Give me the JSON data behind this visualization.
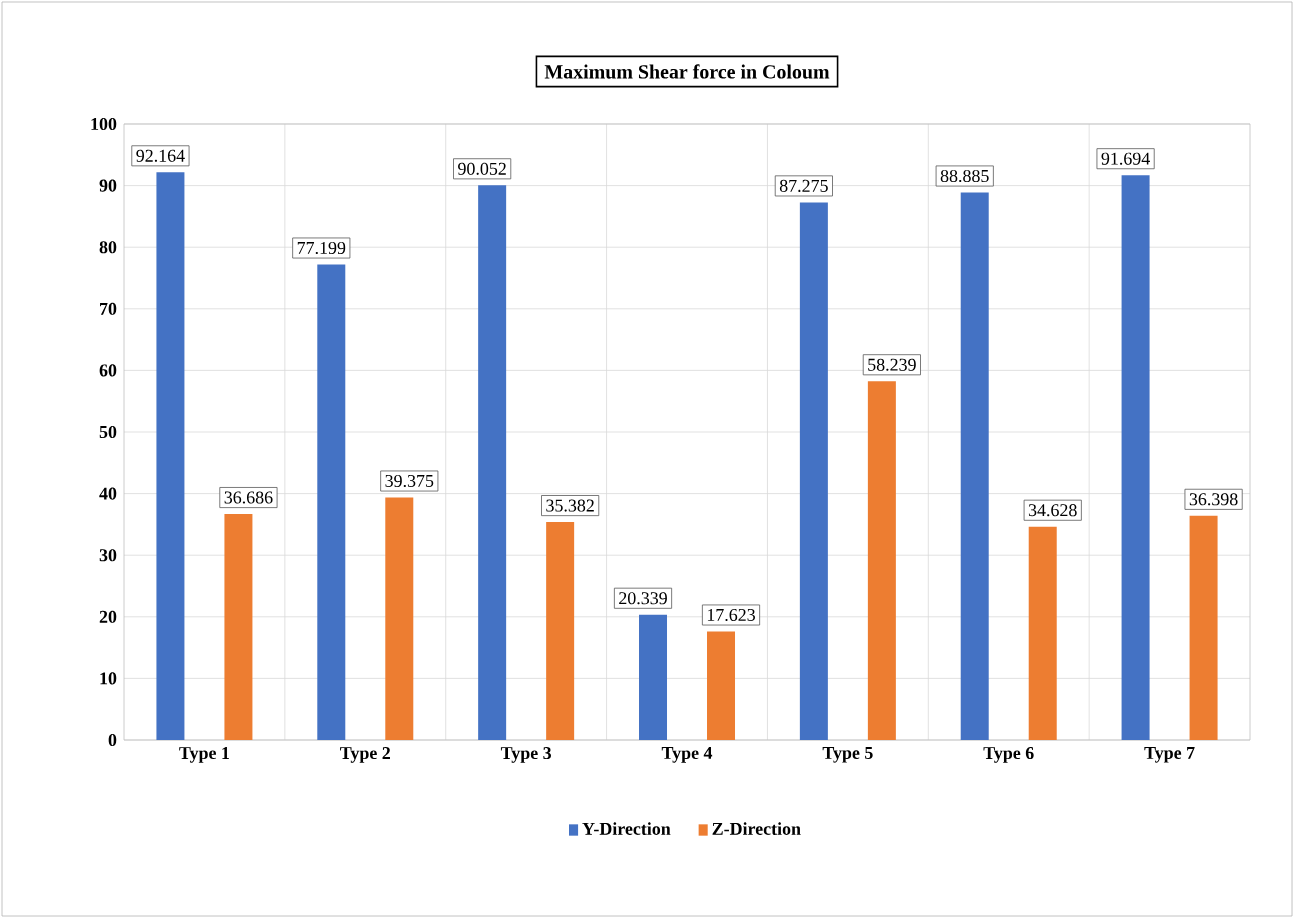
{
  "chart_data": {
    "type": "bar",
    "title": "Maximum  Shear force in Coloum",
    "categories": [
      "Type 1",
      "Type 2",
      "Type 3",
      "Type 4",
      "Type 5",
      "Type 6",
      "Type 7"
    ],
    "series": [
      {
        "name": "Y-Direction",
        "color": "#4472c4",
        "values": [
          92.164,
          77.199,
          90.052,
          20.339,
          87.275,
          88.885,
          91.694
        ]
      },
      {
        "name": "Z-Direction",
        "color": "#ed7d31",
        "values": [
          36.686,
          39.375,
          35.382,
          17.623,
          58.239,
          34.628,
          36.398
        ]
      }
    ],
    "ylim": [
      0,
      100
    ],
    "yticks": [
      0,
      10,
      20,
      30,
      40,
      50,
      60,
      70,
      80,
      90,
      100
    ],
    "grid": true,
    "legend": "bottom",
    "data_labels": true
  }
}
